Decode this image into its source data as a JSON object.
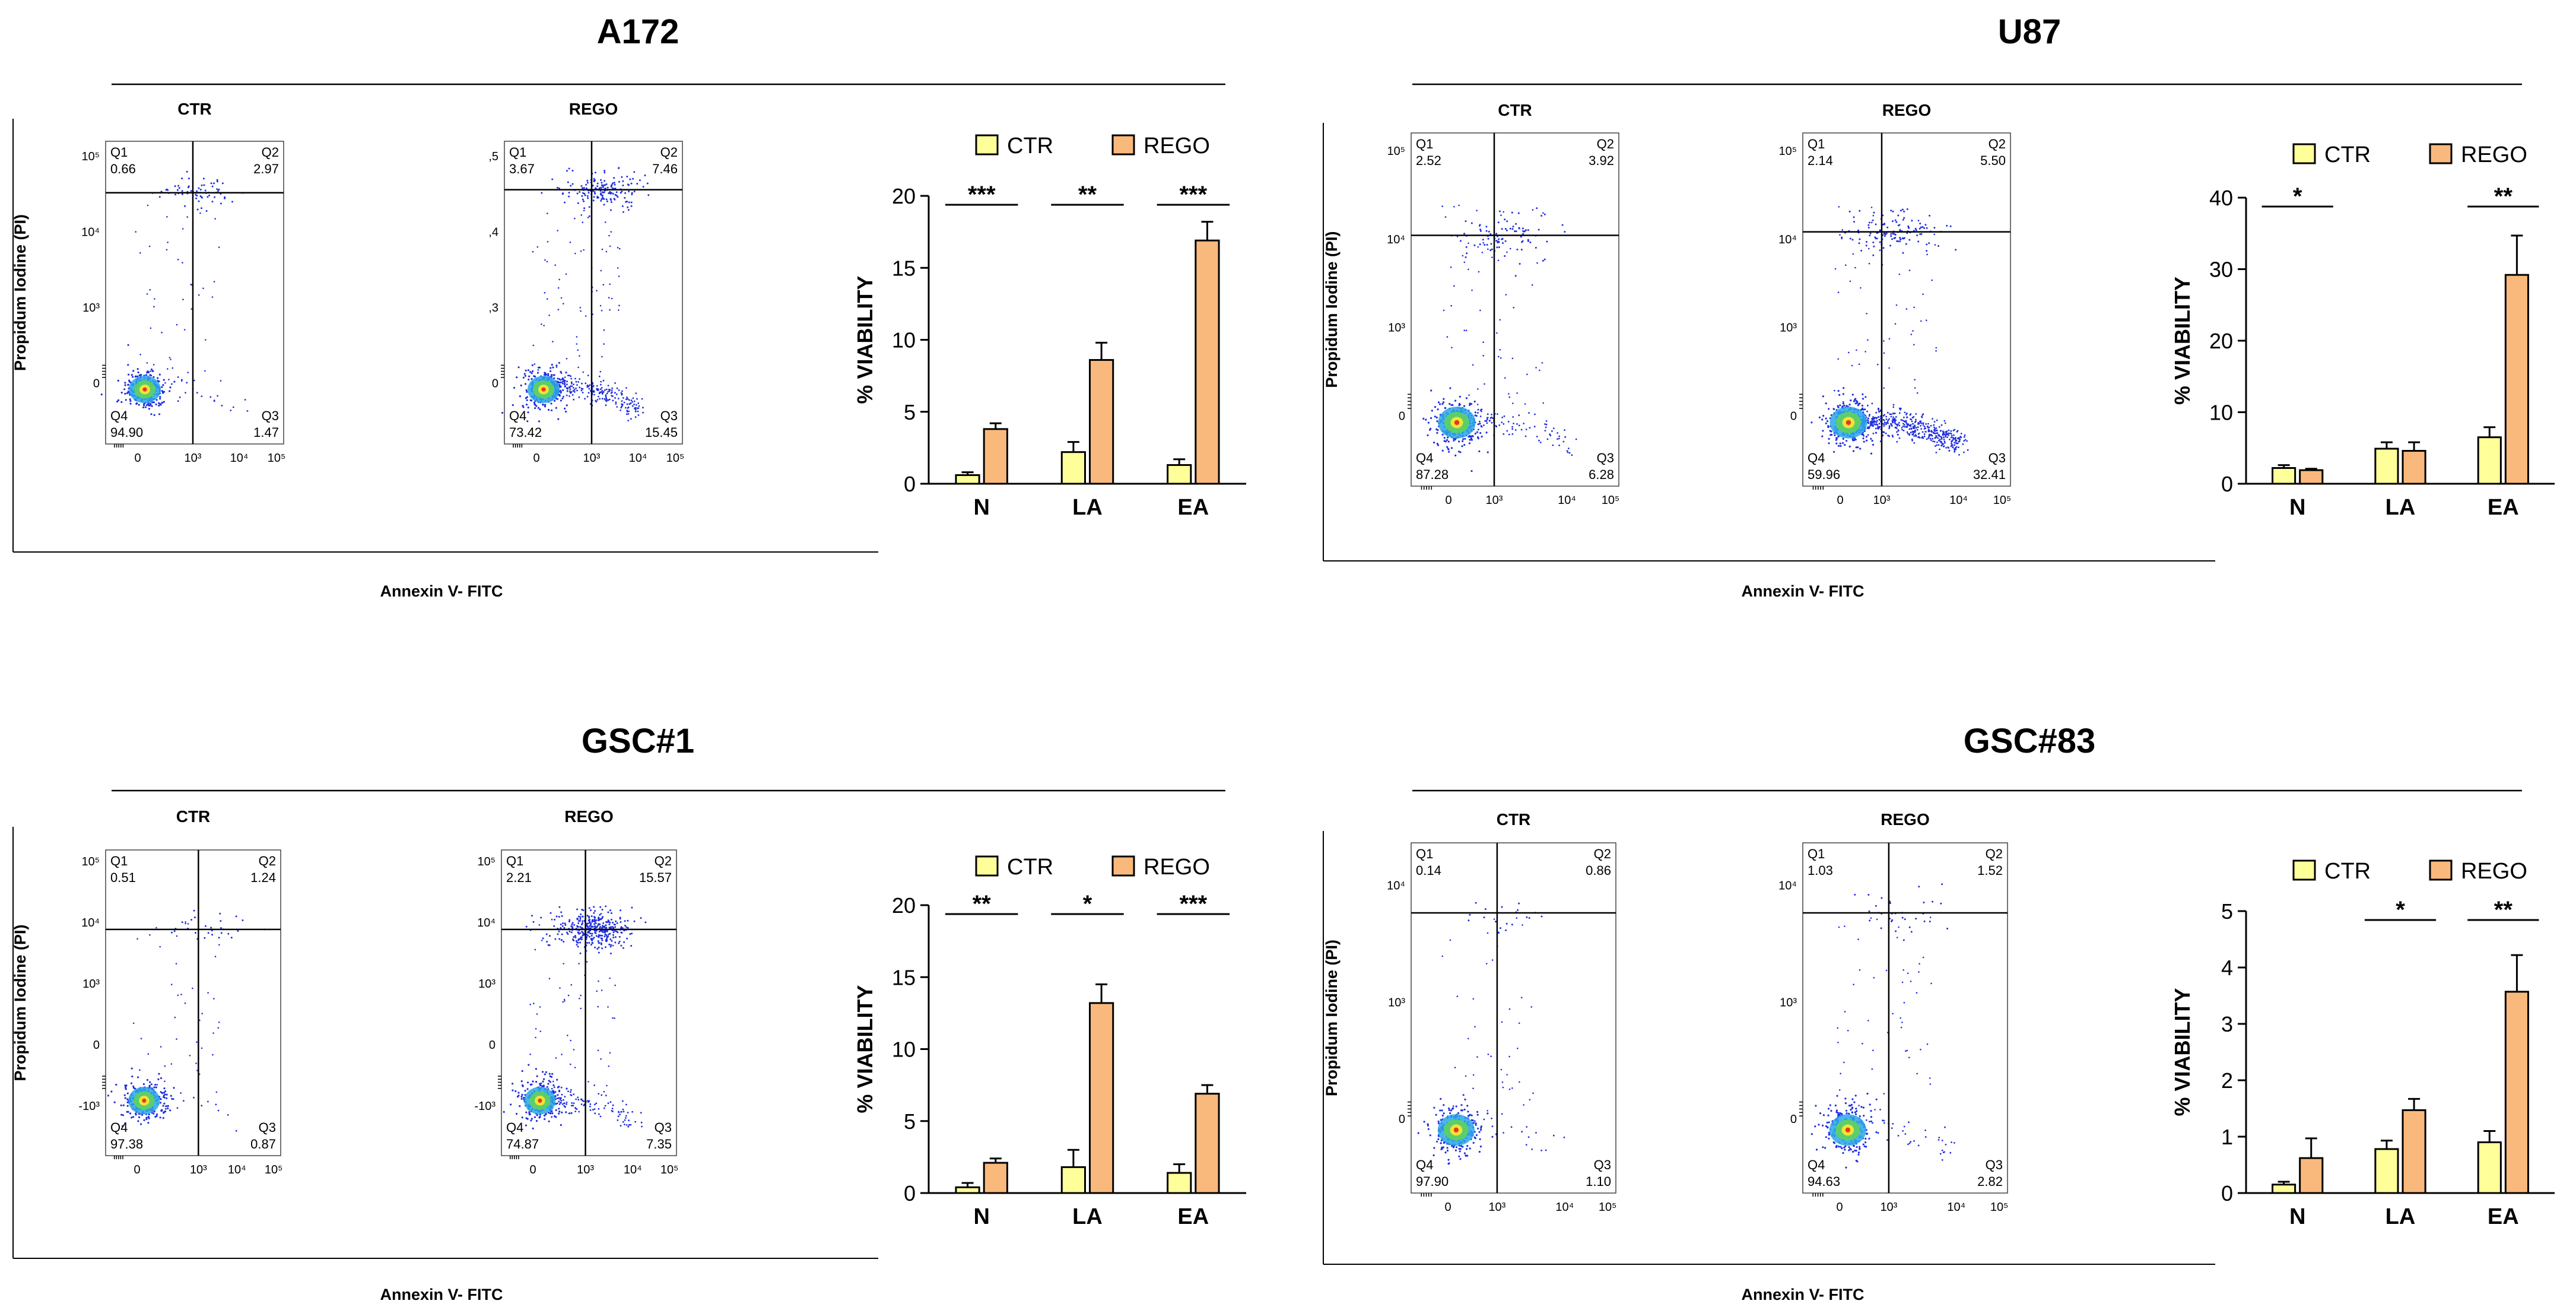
{
  "figure": {
    "panels": [
      {
        "title": "A172",
        "y_label": "Propidum Iodine (PI)",
        "x_label": "Annexin V- FITC",
        "plots": [
          {
            "label": "CTR",
            "quadrants": {
              "q1": {
                "name": "Q1",
                "value": "0.66"
              },
              "q2": {
                "name": "Q2",
                "value": "2.97"
              },
              "q3": {
                "name": "Q3",
                "value": "1.47"
              },
              "q4": {
                "name": "Q4",
                "value": "94.90"
              }
            },
            "y_ticks": [
              "10⁵",
              "10⁴",
              "10³",
              "0"
            ],
            "x_ticks": [
              "0",
              "10³",
              "10⁴",
              "10⁵"
            ]
          },
          {
            "label": "REGO",
            "quadrants": {
              "q1": {
                "name": "Q1",
                "value": "3.67"
              },
              "q2": {
                "name": "Q2",
                "value": "7.46"
              },
              "q3": {
                "name": "Q3",
                "value": "15.45"
              },
              "q4": {
                "name": "Q4",
                "value": "73.42"
              }
            },
            "y_ticks": [
              ",5",
              ",4",
              ",3",
              "0"
            ],
            "x_ticks": [
              "0",
              "10³",
              "10⁴",
              "10⁵"
            ]
          }
        ]
      },
      {
        "title": "U87",
        "y_label": "Propidum Iodine (PI)",
        "x_label": "Annexin V- FITC",
        "plots": [
          {
            "label": "CTR",
            "quadrants": {
              "q1": {
                "name": "Q1",
                "value": "2.52"
              },
              "q2": {
                "name": "Q2",
                "value": "3.92"
              },
              "q3": {
                "name": "Q3",
                "value": "6.28"
              },
              "q4": {
                "name": "Q4",
                "value": "87.28"
              }
            },
            "y_ticks": [
              "10⁵",
              "10⁴",
              "10³",
              "0"
            ],
            "x_ticks": [
              "0",
              "10³",
              "10⁴",
              "10⁵"
            ]
          },
          {
            "label": "REGO",
            "quadrants": {
              "q1": {
                "name": "Q1",
                "value": "2.14"
              },
              "q2": {
                "name": "Q2",
                "value": "5.50"
              },
              "q3": {
                "name": "Q3",
                "value": "32.41"
              },
              "q4": {
                "name": "Q4",
                "value": "59.96"
              }
            },
            "y_ticks": [
              "10⁵",
              "10⁴",
              "10³",
              "0"
            ],
            "x_ticks": [
              "0",
              "10³",
              "10⁴",
              "10⁵"
            ]
          }
        ]
      },
      {
        "title": "GSC#1",
        "y_label": "Propidum Iodine (PI)",
        "x_label": "Annexin V- FITC",
        "plots": [
          {
            "label": "CTR",
            "quadrants": {
              "q1": {
                "name": "Q1",
                "value": "0.51"
              },
              "q2": {
                "name": "Q2",
                "value": "1.24"
              },
              "q3": {
                "name": "Q3",
                "value": "0.87"
              },
              "q4": {
                "name": "Q4",
                "value": "97.38"
              }
            },
            "y_ticks": [
              "10⁵",
              "10⁴",
              "10³",
              "0",
              "-10³"
            ],
            "x_ticks": [
              "0",
              "10³",
              "10⁴",
              "10⁵"
            ]
          },
          {
            "label": "REGO",
            "quadrants": {
              "q1": {
                "name": "Q1",
                "value": "2.21"
              },
              "q2": {
                "name": "Q2",
                "value": "15.57"
              },
              "q3": {
                "name": "Q3",
                "value": "7.35"
              },
              "q4": {
                "name": "Q4",
                "value": "74.87"
              }
            },
            "y_ticks": [
              "10⁵",
              "10⁴",
              "10³",
              "0",
              "-10³"
            ],
            "x_ticks": [
              "0",
              "10³",
              "10⁴",
              "10⁵"
            ]
          }
        ]
      },
      {
        "title": "GSC#83",
        "y_label": "Propidum Iodine (PI)",
        "x_label": "Annexin V- FITC",
        "plots": [
          {
            "label": "CTR",
            "quadrants": {
              "q1": {
                "name": "Q1",
                "value": "0.14"
              },
              "q2": {
                "name": "Q2",
                "value": "0.86"
              },
              "q3": {
                "name": "Q3",
                "value": "1.10"
              },
              "q4": {
                "name": "Q4",
                "value": "97.90"
              }
            },
            "y_ticks": [
              "10⁴",
              "10³",
              "0"
            ],
            "x_ticks": [
              "0",
              "10³",
              "10⁴",
              "10⁵"
            ]
          },
          {
            "label": "REGO",
            "quadrants": {
              "q1": {
                "name": "Q1",
                "value": "1.03"
              },
              "q2": {
                "name": "Q2",
                "value": "1.52"
              },
              "q3": {
                "name": "Q3",
                "value": "2.82"
              },
              "q4": {
                "name": "Q4",
                "value": "94.63"
              }
            },
            "y_ticks": [
              "10⁴",
              "10³",
              "0"
            ],
            "x_ticks": [
              "0",
              "10³",
              "10⁴",
              "10⁵"
            ]
          }
        ]
      }
    ]
  },
  "colors": {
    "ctr_bar": "#ffff99",
    "rego_bar": "#f9b97c",
    "scatter_dot": "#1f2ee0",
    "quadrant_line": "#000000"
  },
  "chart_data": [
    {
      "type": "bar",
      "panel": "A172",
      "categories": [
        "N",
        "LA",
        "EA"
      ],
      "series": [
        {
          "name": "CTR",
          "values": [
            0.6,
            2.2,
            1.3
          ],
          "errors": [
            0.2,
            0.7,
            0.4
          ]
        },
        {
          "name": "REGO",
          "values": [
            3.8,
            8.6,
            16.9
          ],
          "errors": [
            0.4,
            1.2,
            1.3
          ]
        }
      ],
      "ylabel": "% VIABILITY",
      "ylim": [
        0,
        20
      ],
      "yticks": [
        0,
        5,
        10,
        15,
        20
      ],
      "significance": [
        "***",
        "**",
        "***"
      ],
      "legend": "top"
    },
    {
      "type": "bar",
      "panel": "U87",
      "categories": [
        "N",
        "LA",
        "EA"
      ],
      "series": [
        {
          "name": "CTR",
          "values": [
            2.2,
            4.9,
            6.5
          ],
          "errors": [
            0.4,
            0.9,
            1.4
          ]
        },
        {
          "name": "REGO",
          "values": [
            1.9,
            4.6,
            29.2
          ],
          "errors": [
            0.2,
            1.2,
            5.5
          ]
        }
      ],
      "ylabel": "% VIABILITY",
      "ylim": [
        0,
        40
      ],
      "yticks": [
        0,
        10,
        20,
        30,
        40
      ],
      "significance": [
        "*",
        "",
        "**"
      ],
      "legend": "top"
    },
    {
      "type": "bar",
      "panel": "GSC#1",
      "categories": [
        "N",
        "LA",
        "EA"
      ],
      "series": [
        {
          "name": "CTR",
          "values": [
            0.4,
            1.8,
            1.4
          ],
          "errors": [
            0.3,
            1.2,
            0.6
          ]
        },
        {
          "name": "REGO",
          "values": [
            2.1,
            13.2,
            6.9
          ],
          "errors": [
            0.3,
            1.3,
            0.6
          ]
        }
      ],
      "ylabel": "% VIABILITY",
      "ylim": [
        0,
        20
      ],
      "yticks": [
        0,
        5,
        10,
        15,
        20
      ],
      "significance": [
        "**",
        "*",
        "***"
      ],
      "legend": "top"
    },
    {
      "type": "bar",
      "panel": "GSC#83",
      "categories": [
        "N",
        "LA",
        "EA"
      ],
      "series": [
        {
          "name": "CTR",
          "values": [
            0.15,
            0.78,
            0.9
          ],
          "errors": [
            0.05,
            0.15,
            0.2
          ]
        },
        {
          "name": "REGO",
          "values": [
            0.62,
            1.47,
            3.57
          ],
          "errors": [
            0.35,
            0.2,
            0.65
          ]
        }
      ],
      "ylabel": "% VIABILITY",
      "ylim": [
        0,
        5
      ],
      "yticks": [
        0,
        1,
        2,
        3,
        4,
        5
      ],
      "significance": [
        "",
        "*",
        "**"
      ],
      "legend": "top"
    }
  ]
}
